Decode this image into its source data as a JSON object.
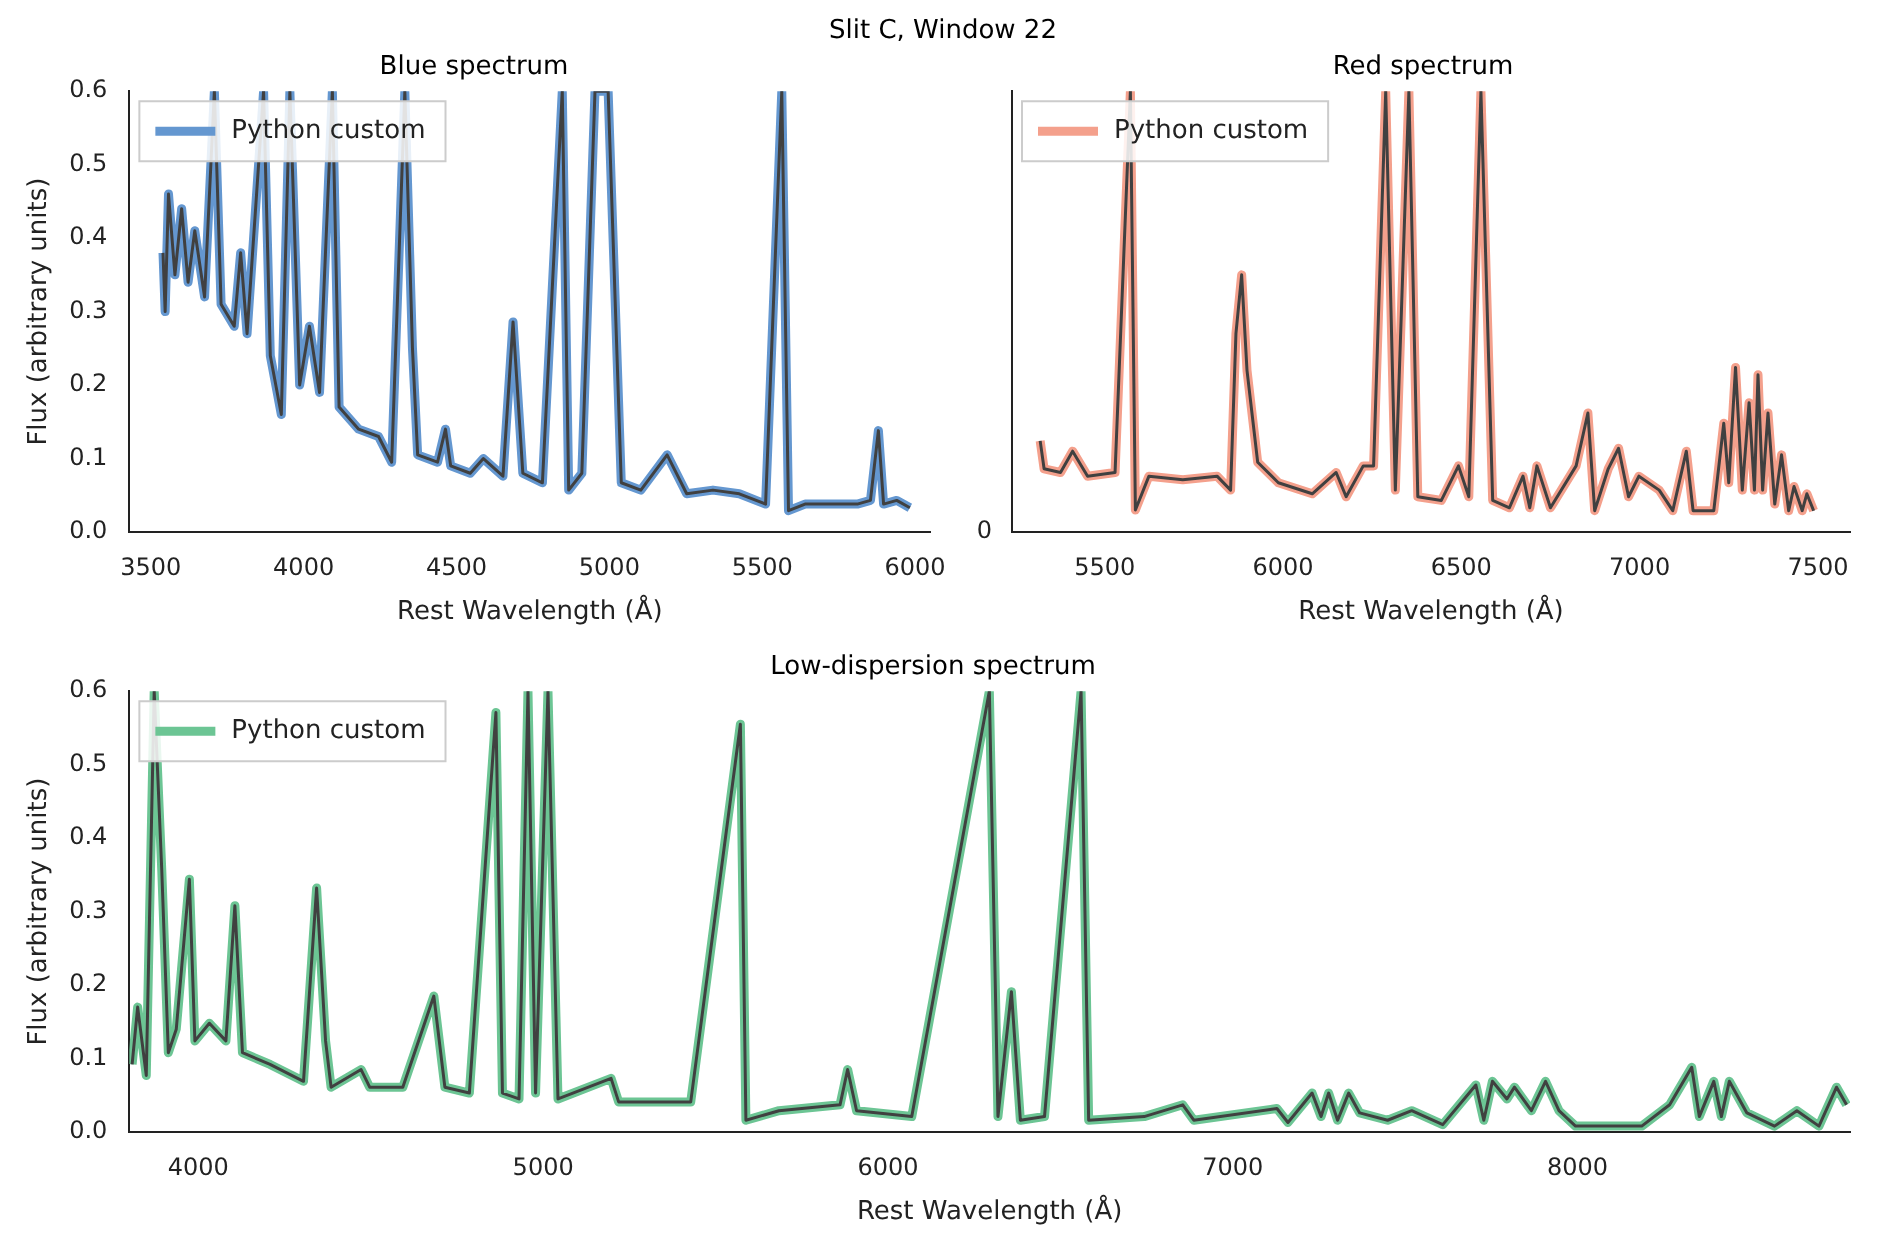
{
  "chart_data": [
    {
      "type": "line",
      "title": "Blue spectrum",
      "xlabel": "Rest Wavelength (Å)",
      "ylabel": "Flux (arbitrary units)",
      "annotations": [
        "Slit C, Window 22"
      ],
      "legend": "top left",
      "xlim": [
        3430,
        6050
      ],
      "xticks": [
        3500,
        4000,
        4500,
        5000,
        5500,
        6000
      ],
      "ylim": [
        0,
        0.6
      ],
      "yticks": [
        {
          "value": 0,
          "label": "0.0"
        },
        0.1,
        0.2,
        0.3,
        0.4,
        0.5,
        0.6
      ],
      "x": [
        3540,
        3547,
        3558,
        3579,
        3601,
        3622,
        3644,
        3676,
        3708,
        3730,
        3773,
        3794,
        3815,
        3869,
        3891,
        3927,
        3955,
        3987,
        4019,
        4052,
        4094,
        4116,
        4180,
        4245,
        4288,
        4331,
        4356,
        4373,
        4438,
        4464,
        4481,
        4545,
        4588,
        4652,
        4685,
        4717,
        4781,
        4846,
        4867,
        4910,
        4953,
        4996,
        5039,
        5103,
        5189,
        5253,
        5339,
        5425,
        5511,
        5564,
        5586,
        5640,
        5725,
        5811,
        5854,
        5880,
        5897,
        5940,
        5983
      ],
      "series": [
        {
          "name": "Python custom",
          "color": "#6497d0",
          "values": [
            0.38,
            0.3,
            0.46,
            0.35,
            0.44,
            0.34,
            0.41,
            0.32,
            0.6,
            0.31,
            0.28,
            0.38,
            0.27,
            0.6,
            0.24,
            0.16,
            0.6,
            0.2,
            0.28,
            0.19,
            0.6,
            0.17,
            0.14,
            0.13,
            0.095,
            0.6,
            0.25,
            0.105,
            0.095,
            0.14,
            0.09,
            0.08,
            0.1,
            0.076,
            0.286,
            0.08,
            0.067,
            0.6,
            0.057,
            0.08,
            0.6,
            0.6,
            0.067,
            0.057,
            0.105,
            0.052,
            0.057,
            0.052,
            0.038,
            0.6,
            0.029,
            0.038,
            0.038,
            0.038,
            0.043,
            0.138,
            0.038,
            0.043,
            0.033
          ]
        },
        {
          "color": "#404040",
          "values": [
            0.38,
            0.3,
            0.46,
            0.35,
            0.44,
            0.34,
            0.41,
            0.32,
            0.6,
            0.31,
            0.28,
            0.38,
            0.27,
            0.6,
            0.24,
            0.16,
            0.6,
            0.2,
            0.28,
            0.19,
            0.6,
            0.17,
            0.14,
            0.13,
            0.095,
            0.6,
            0.25,
            0.105,
            0.095,
            0.14,
            0.09,
            0.08,
            0.1,
            0.076,
            0.286,
            0.08,
            0.067,
            0.6,
            0.057,
            0.08,
            0.6,
            0.6,
            0.067,
            0.057,
            0.105,
            0.052,
            0.057,
            0.052,
            0.038,
            0.6,
            0.029,
            0.038,
            0.038,
            0.038,
            0.043,
            0.138,
            0.038,
            0.043,
            0.033
          ]
        }
      ]
    },
    {
      "type": "line",
      "title": "Red spectrum",
      "xlabel": "Rest Wavelength (Å)",
      "legend": "top left",
      "xlim": [
        5240,
        7590
      ],
      "xticks": [
        5500,
        6000,
        6500,
        7000,
        7500
      ],
      "ylim": [
        0,
        0.6
      ],
      "yticks": [
        0,
        0.1,
        0.2,
        0.3,
        0.4,
        0.5,
        0.6
      ],
      "tick_labels": "x",
      "annotations": [
        "0"
      ],
      "x": [
        5319,
        5330,
        5376,
        5410,
        5452,
        5529,
        5572,
        5586,
        5624,
        5719,
        5815,
        5853,
        5868,
        5884,
        5899,
        5929,
        5987,
        6082,
        6149,
        6177,
        6225,
        6254,
        6288,
        6315,
        6353,
        6378,
        6444,
        6492,
        6521,
        6555,
        6588,
        6635,
        6673,
        6692,
        6712,
        6750,
        6822,
        6855,
        6874,
        6912,
        6941,
        6969,
        6998,
        7055,
        7093,
        7131,
        7150,
        7208,
        7236,
        7250,
        7269,
        7288,
        7307,
        7322,
        7332,
        7345,
        7360,
        7379,
        7398,
        7418,
        7433,
        7456,
        7469,
        7488
      ],
      "series": [
        {
          "name": "Python custom",
          "color": "#f4a08c",
          "values": [
            0.124,
            0.086,
            0.081,
            0.11,
            0.076,
            0.081,
            0.6,
            0.03,
            0.076,
            0.071,
            0.076,
            0.057,
            0.27,
            0.35,
            0.22,
            0.095,
            0.067,
            0.052,
            0.081,
            0.048,
            0.09,
            0.09,
            0.6,
            0.057,
            0.6,
            0.048,
            0.043,
            0.09,
            0.048,
            0.6,
            0.043,
            0.033,
            0.076,
            0.033,
            0.09,
            0.033,
            0.09,
            0.162,
            0.029,
            0.086,
            0.114,
            0.048,
            0.076,
            0.057,
            0.029,
            0.11,
            0.029,
            0.029,
            0.148,
            0.067,
            0.224,
            0.057,
            0.176,
            0.057,
            0.214,
            0.057,
            0.162,
            0.038,
            0.105,
            0.029,
            0.062,
            0.029,
            0.052,
            0.029
          ]
        },
        {
          "color": "#404040",
          "values": [
            0.124,
            0.086,
            0.081,
            0.11,
            0.076,
            0.081,
            0.6,
            0.03,
            0.076,
            0.071,
            0.076,
            0.057,
            0.27,
            0.35,
            0.22,
            0.095,
            0.067,
            0.052,
            0.081,
            0.048,
            0.09,
            0.09,
            0.6,
            0.057,
            0.6,
            0.048,
            0.043,
            0.09,
            0.048,
            0.6,
            0.043,
            0.033,
            0.076,
            0.033,
            0.09,
            0.033,
            0.09,
            0.162,
            0.029,
            0.086,
            0.114,
            0.048,
            0.076,
            0.057,
            0.029,
            0.11,
            0.029,
            0.029,
            0.148,
            0.067,
            0.224,
            0.057,
            0.176,
            0.057,
            0.214,
            0.057,
            0.162,
            0.038,
            0.105,
            0.029,
            0.062,
            0.029,
            0.052,
            0.029
          ]
        }
      ]
    },
    {
      "type": "line",
      "title": "Low-dispersion spectrum",
      "xlabel": "Rest Wavelength (Å)",
      "ylabel": "Flux (arbitrary units)",
      "legend": "top left",
      "xlim": [
        3800,
        8790
      ],
      "xticks": [
        4000,
        5000,
        6000,
        7000,
        8000
      ],
      "ylim": [
        0,
        0.6
      ],
      "yticks": [
        {
          "value": 0,
          "label": "0.0"
        },
        0.1,
        0.2,
        0.3,
        0.4,
        0.5,
        0.6
      ],
      "x": [
        3808,
        3824,
        3849,
        3872,
        3894,
        3913,
        3936,
        3974,
        3990,
        4032,
        4080,
        4106,
        4128,
        4208,
        4305,
        4343,
        4369,
        4385,
        4472,
        4497,
        4593,
        4683,
        4715,
        4786,
        4863,
        4882,
        4930,
        4956,
        4978,
        5014,
        5043,
        5197,
        5219,
        5428,
        5572,
        5588,
        5684,
        5861,
        5883,
        5909,
        6069,
        6294,
        6319,
        6358,
        6384,
        6454,
        6560,
        6582,
        6743,
        6855,
        6887,
        7128,
        7160,
        7230,
        7256,
        7278,
        7304,
        7336,
        7368,
        7449,
        7519,
        7609,
        7705,
        7728,
        7753,
        7795,
        7817,
        7866,
        7907,
        7946,
        7994,
        8186,
        8267,
        8331,
        8353,
        8395,
        8417,
        8440,
        8491,
        8571,
        8636,
        8700,
        8751,
        8780
      ],
      "series": [
        {
          "name": "Python custom",
          "color": "#6cc594",
          "values": [
            0.092,
            0.17,
            0.077,
            0.6,
            0.356,
            0.108,
            0.14,
            0.344,
            0.124,
            0.148,
            0.124,
            0.308,
            0.108,
            0.092,
            0.069,
            0.332,
            0.124,
            0.061,
            0.085,
            0.061,
            0.061,
            0.185,
            0.061,
            0.053,
            0.571,
            0.053,
            0.045,
            0.6,
            0.053,
            0.6,
            0.045,
            0.073,
            0.041,
            0.041,
            0.555,
            0.016,
            0.029,
            0.037,
            0.085,
            0.029,
            0.021,
            0.6,
            0.021,
            0.191,
            0.016,
            0.021,
            0.6,
            0.016,
            0.021,
            0.037,
            0.016,
            0.032,
            0.013,
            0.053,
            0.021,
            0.053,
            0.016,
            0.053,
            0.026,
            0.016,
            0.029,
            0.01,
            0.064,
            0.016,
            0.069,
            0.045,
            0.061,
            0.029,
            0.069,
            0.029,
            0.008,
            0.008,
            0.037,
            0.088,
            0.021,
            0.069,
            0.021,
            0.069,
            0.026,
            0.008,
            0.029,
            0.008,
            0.061,
            0.037
          ]
        },
        {
          "color": "#404040",
          "values": [
            0.092,
            0.17,
            0.077,
            0.6,
            0.356,
            0.108,
            0.14,
            0.344,
            0.124,
            0.148,
            0.124,
            0.308,
            0.108,
            0.092,
            0.069,
            0.332,
            0.124,
            0.061,
            0.085,
            0.061,
            0.061,
            0.185,
            0.061,
            0.053,
            0.571,
            0.053,
            0.045,
            0.6,
            0.053,
            0.6,
            0.045,
            0.073,
            0.041,
            0.041,
            0.555,
            0.016,
            0.029,
            0.037,
            0.085,
            0.029,
            0.021,
            0.6,
            0.021,
            0.191,
            0.016,
            0.021,
            0.6,
            0.016,
            0.021,
            0.037,
            0.016,
            0.032,
            0.013,
            0.053,
            0.021,
            0.053,
            0.016,
            0.053,
            0.026,
            0.016,
            0.029,
            0.01,
            0.064,
            0.016,
            0.069,
            0.045,
            0.061,
            0.029,
            0.069,
            0.029,
            0.008,
            0.008,
            0.037,
            0.088,
            0.021,
            0.069,
            0.021,
            0.069,
            0.026,
            0.008,
            0.029,
            0.008,
            0.061,
            0.037
          ]
        }
      ]
    }
  ]
}
